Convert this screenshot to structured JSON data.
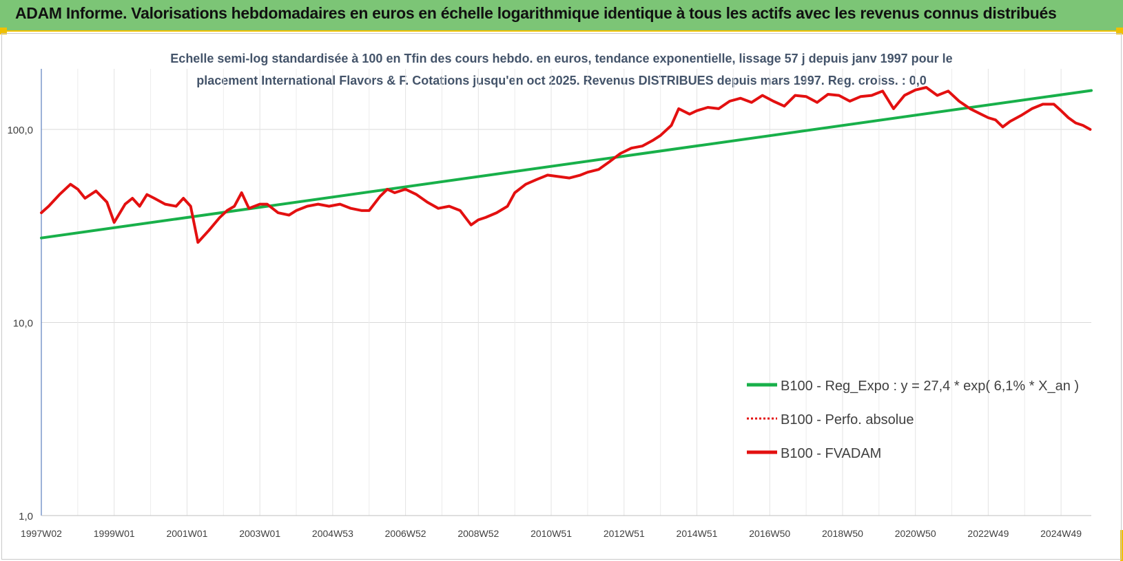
{
  "header": {
    "title": "ADAM Informe. Valorisations hebdomadaires en euros en échelle logarithmique identique à tous les actifs avec les revenus connus distribués"
  },
  "colors": {
    "title_bar": "#7cc576",
    "accent_border": "#f0c000",
    "series_red": "#e31010",
    "series_green": "#18b04a",
    "subtitle": "#44546a"
  },
  "chart_data": {
    "type": "line",
    "title_lines": [
      "Echelle semi-log standardisée à 100 en Tfin des cours hebdo. en euros, tendance exponentielle, lissage 57 j depuis janv 1997 pour le",
      "placement International Flavors & F. Cotations jusqu'en oct 2025. Revenus DISTRIBUES depuis mars 1997. Reg. croiss. : 0,0"
    ],
    "y_scale": "log",
    "ylim": [
      1,
      200
    ],
    "y_ticks": [
      1,
      10,
      100
    ],
    "y_tick_labels": [
      "1,0",
      "10,0",
      "100,0"
    ],
    "xlim": [
      1997.0,
      2025.83
    ],
    "x_ticks": [
      1997.0,
      1999.0,
      2001.0,
      2003.0,
      2005.0,
      2007.0,
      2009.0,
      2011.0,
      2013.0,
      2015.0,
      2017.0,
      2019.0,
      2021.0,
      2023.0,
      2025.0
    ],
    "x_tick_labels": [
      "1997W02",
      "1999W01",
      "2001W01",
      "2003W01",
      "2004W53",
      "2006W52",
      "2008W52",
      "2010W51",
      "2012W51",
      "2014W51",
      "2016W50",
      "2018W50",
      "2020W50",
      "2022W49",
      "2024W49"
    ],
    "grid": true,
    "legend_position": "bottom-right",
    "series": [
      {
        "name": "B100 - Reg_Expo : y = 27,4 * exp( 6,1% *  X_an )",
        "style": "solid",
        "color": "#18b04a",
        "x": [
          1997.0,
          2025.83
        ],
        "y": [
          27.4,
          159.0
        ]
      },
      {
        "name": "B100 - Perfo. absolue",
        "style": "dotted",
        "color": "#e31010",
        "x": [],
        "y": []
      },
      {
        "name": "B100 - FVADAM",
        "style": "solid",
        "color": "#e31010",
        "x": [
          1997.0,
          1997.2,
          1997.5,
          1997.8,
          1998.0,
          1998.2,
          1998.5,
          1998.8,
          1999.0,
          1999.3,
          1999.5,
          1999.7,
          1999.9,
          2000.1,
          2000.4,
          2000.7,
          2000.9,
          2001.1,
          2001.3,
          2001.6,
          2001.9,
          2002.1,
          2002.3,
          2002.5,
          2002.7,
          2003.0,
          2003.2,
          2003.5,
          2003.8,
          2004.0,
          2004.3,
          2004.6,
          2004.9,
          2005.2,
          2005.5,
          2005.8,
          2006.0,
          2006.3,
          2006.5,
          2006.7,
          2007.0,
          2007.3,
          2007.6,
          2007.9,
          2008.2,
          2008.5,
          2008.8,
          2009.0,
          2009.2,
          2009.5,
          2009.8,
          2010.0,
          2010.3,
          2010.6,
          2010.9,
          2011.2,
          2011.5,
          2011.8,
          2012.0,
          2012.3,
          2012.6,
          2012.9,
          2013.2,
          2013.5,
          2013.8,
          2014.0,
          2014.3,
          2014.5,
          2014.8,
          2015.0,
          2015.3,
          2015.6,
          2015.9,
          2016.2,
          2016.5,
          2016.8,
          2017.1,
          2017.4,
          2017.7,
          2018.0,
          2018.3,
          2018.6,
          2018.9,
          2019.2,
          2019.5,
          2019.8,
          2020.1,
          2020.4,
          2020.7,
          2021.0,
          2021.3,
          2021.6,
          2021.9,
          2022.2,
          2022.5,
          2022.8,
          2023.0,
          2023.2,
          2023.4,
          2023.6,
          2023.9,
          2024.2,
          2024.5,
          2024.8,
          2025.0,
          2025.2,
          2025.4,
          2025.6,
          2025.8
        ],
        "y": [
          37,
          40,
          46,
          52,
          49,
          44,
          48,
          42,
          33,
          41,
          44,
          40,
          46,
          44,
          41,
          40,
          44,
          40,
          26,
          30,
          35,
          38,
          40,
          47,
          39,
          41,
          41,
          37,
          36,
          38,
          40,
          41,
          40,
          41,
          39,
          38,
          38,
          45,
          49,
          47,
          49,
          46,
          42,
          39,
          40,
          38,
          32,
          34,
          35,
          37,
          40,
          47,
          52,
          55,
          58,
          57,
          56,
          58,
          60,
          62,
          68,
          75,
          80,
          82,
          88,
          93,
          105,
          128,
          120,
          125,
          130,
          128,
          140,
          145,
          138,
          150,
          140,
          132,
          150,
          148,
          138,
          152,
          150,
          140,
          148,
          150,
          158,
          128,
          150,
          160,
          165,
          150,
          158,
          140,
          128,
          120,
          115,
          112,
          103,
          110,
          118,
          128,
          135,
          135,
          125,
          115,
          108,
          105,
          100
        ]
      }
    ]
  }
}
